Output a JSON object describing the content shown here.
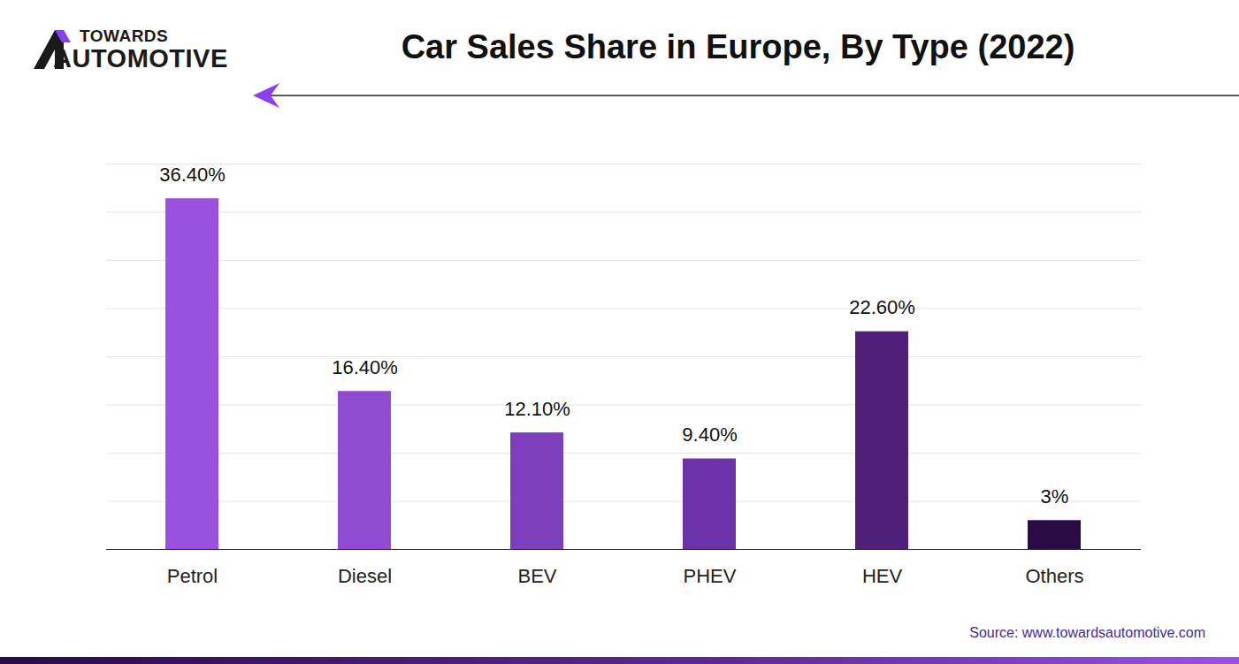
{
  "chart_data": {
    "type": "bar",
    "title": "Car Sales Share in Europe, By Type (2022)",
    "logo": [
      "TOWARDS",
      "AUTOMOTIVE"
    ],
    "source": "Source: www.towardsautomotive.com",
    "categories": [
      "Petrol",
      "Diesel",
      "BEV",
      "PHEV",
      "HEV",
      "Others"
    ],
    "values": [
      36.4,
      16.4,
      12.1,
      9.4,
      22.6,
      3
    ],
    "value_labels": [
      "36.40%",
      "16.40%",
      "12.10%",
      "9.40%",
      "22.60%",
      "3%"
    ],
    "colors": [
      "#9b51e0",
      "#9049d1",
      "#7d3fbb",
      "#6a32a6",
      "#4f1f7a",
      "#2a0b45"
    ],
    "ylim": [
      0,
      40
    ],
    "yticks": [
      0,
      5,
      10,
      15,
      20,
      25,
      30,
      35,
      40
    ],
    "grid": true,
    "data_labels": true,
    "tick_labels": "x"
  }
}
